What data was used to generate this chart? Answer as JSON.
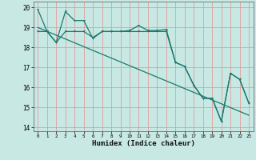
{
  "xlabel": "Humidex (Indice chaleur)",
  "background_color": "#c8e8e4",
  "grid_color": "#e89090",
  "line_color": "#1a7a6e",
  "xlim": [
    -0.5,
    23.5
  ],
  "ylim": [
    13.8,
    20.3
  ],
  "yticks": [
    14,
    15,
    16,
    17,
    18,
    19,
    20
  ],
  "xticks": [
    0,
    1,
    2,
    3,
    4,
    5,
    6,
    7,
    8,
    9,
    10,
    11,
    12,
    13,
    14,
    15,
    16,
    17,
    18,
    19,
    20,
    21,
    22,
    23
  ],
  "line1": [
    19.9,
    18.8,
    18.25,
    19.8,
    19.35,
    19.35,
    18.45,
    18.8,
    18.8,
    18.8,
    18.85,
    19.1,
    18.85,
    18.85,
    18.9,
    17.25,
    17.05,
    16.1,
    15.45,
    15.45,
    14.3,
    16.7,
    16.4,
    15.2
  ],
  "line2": [
    18.8,
    18.8,
    18.25,
    18.8,
    18.8,
    18.8,
    18.5,
    18.8,
    18.8,
    18.8,
    18.8,
    18.8,
    18.8,
    18.8,
    18.8,
    17.25,
    17.05,
    16.1,
    15.45,
    15.45,
    14.3,
    16.7,
    16.4,
    15.2
  ],
  "line3_x": [
    0,
    23
  ],
  "line3_y": [
    19.0,
    14.6
  ]
}
